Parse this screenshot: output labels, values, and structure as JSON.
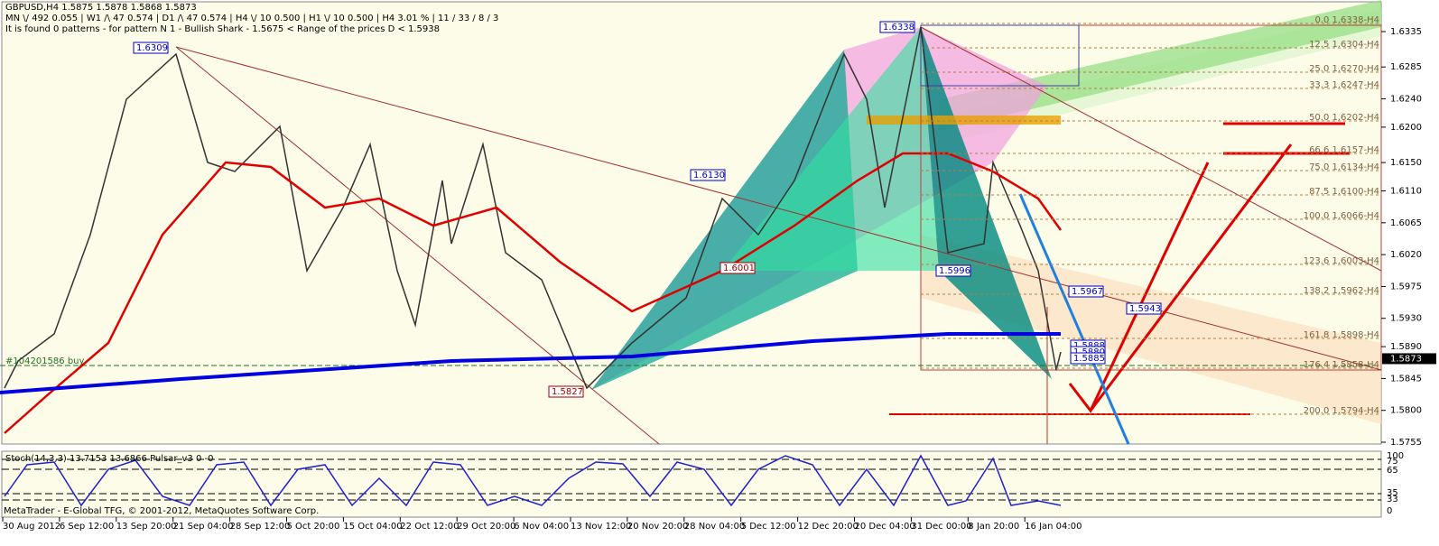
{
  "header": {
    "symbol_line": "GBPUSD,H4  1.5875 1.5878 1.5868 1.5873",
    "trend_line": "MN \\/ 492  0.055  |  W1 /\\ 47  0.574  |  D1 /\\ 47  0.574  |  H4 \\/ 10  0.500  |  H1 \\/ 10  0.500  |  H4  3.01 %  |  11 / 33 / 8 / 3",
    "pattern_line": "It is found 0 patterns  -  for pattern N 1 - Bullish Shark - 1.5675 < Range of the prices D < 1.5938"
  },
  "price_axis": [
    "1.6335",
    "1.6285",
    "1.6240",
    "1.6200",
    "1.6150",
    "1.6110",
    "1.6065",
    "1.6020",
    "1.5975",
    "1.5930",
    "1.5890",
    "1.5845",
    "1.5800",
    "1.5755"
  ],
  "current_price": "1.5873",
  "time_axis": [
    "30 Aug 2012",
    "6 Sep 12:00",
    "13 Sep 20:00",
    "21 Sep 04:00",
    "28 Sep 12:00",
    "5 Oct 20:00",
    "15 Oct 04:00",
    "22 Oct 12:00",
    "29 Oct 20:00",
    "6 Nov 04:00",
    "13 Nov 12:00",
    "20 Nov 20:00",
    "28 Nov 04:00",
    "5 Dec 12:00",
    "12 Dec 20:00",
    "20 Dec 04:00",
    "31 Dec 00:00",
    "8 Jan 20:00",
    "16 Jan 04:00"
  ],
  "pivot_labels": [
    "1.6309",
    "1.6338",
    "1.6130",
    "1.6001",
    "1.5996",
    "1.5967",
    "1.5943",
    "1.5827",
    "1.5888",
    "1.5880",
    "1.5885"
  ],
  "fib_levels": [
    "0.0 1.6338-H4",
    "12.5 1.6304-H4",
    "25.0 1.6270-H4",
    "33.3 1.6247-H4",
    "50.0 1.6202-H4",
    "66.6 1.6157-H4",
    "75.0 1.6134-H4",
    "87.5 1.6100-H4",
    "100.0 1.6066-H4",
    "123.6 1.6003-H4",
    "138.2 1.5962-H4",
    "161.8 1.5898-H4",
    "176.4 1.5858-H4",
    "200.0 1.5794-H4"
  ],
  "order_label": "#104201586 buy",
  "stoch": {
    "label": "Stoch(14,3,3) 13.7153 13.6866  Pulsar_v3 0 -0",
    "axis": [
      "100",
      "75",
      "65",
      "35",
      "33",
      "0"
    ]
  },
  "footer": "MetaTrader - E-Global TFG, © 2001-2012, MetaQuotes Software Corp."
}
